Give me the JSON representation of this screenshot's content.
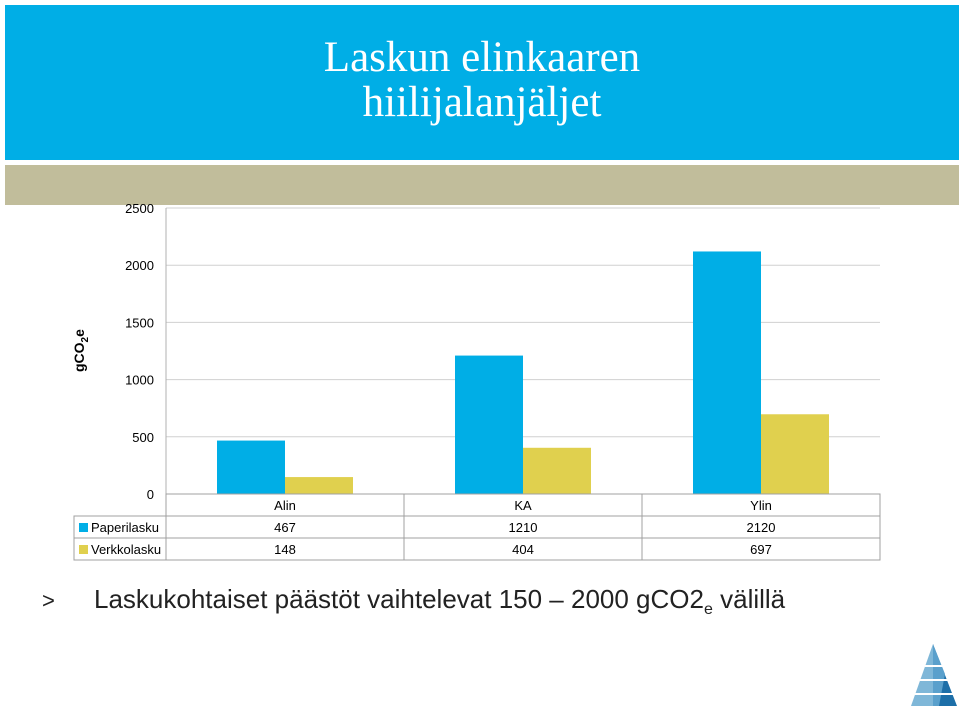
{
  "slide": {
    "title_line1": "Laskun elinkaaren",
    "title_line2": "hiilijalanjäljet",
    "bullet_marker": ">",
    "bullet_text": "Laskukohtaiset päästöt vaihtelevat 150 – 2000 gCO2",
    "bullet_sub": "e",
    "bullet_tail": " välillä"
  },
  "chart_data": {
    "type": "bar",
    "ylabel_main": "gCO",
    "ylabel_sub": "2",
    "ylabel_tail": "e",
    "ylim": [
      0,
      2500
    ],
    "yticks": [
      0,
      500,
      1000,
      1500,
      2000,
      2500
    ],
    "categories": [
      "Alin",
      "KA",
      "Ylin"
    ],
    "series": [
      {
        "name": "Paperilasku",
        "values": [
          467,
          1210,
          2120
        ],
        "color": "#00aee6"
      },
      {
        "name": "Verkkolasku",
        "values": [
          148,
          404,
          697
        ],
        "color": "#e0d04e"
      }
    ],
    "grid": true,
    "legend": "data-table-left"
  },
  "colors": {
    "band": "#00aee6",
    "tan": "#c1bd9b",
    "paper": "#00aee6",
    "online": "#e0d04e"
  },
  "logo": {
    "icon": "pyramid-logo-icon"
  }
}
